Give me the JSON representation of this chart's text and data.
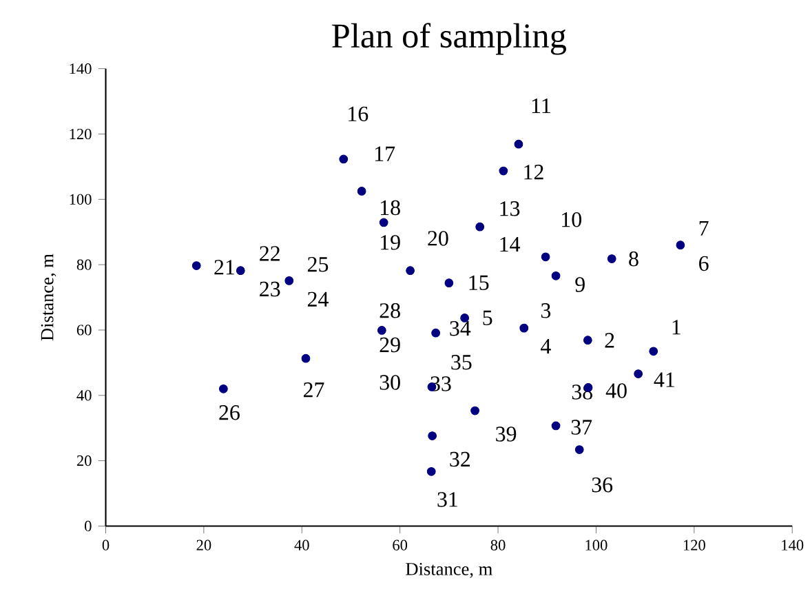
{
  "chart_data": {
    "type": "scatter",
    "title": "Plan of sampling",
    "xlabel": "Distance, m",
    "ylabel": "Distance, m",
    "x": [
      18.5,
      27.5,
      37.4,
      40.8,
      24.0,
      48.5,
      52.2,
      56.7,
      56.3,
      62.1,
      70.0,
      67.3,
      66.5,
      66.6,
      66.4,
      84.2,
      81.1,
      76.3,
      89.7,
      103.2,
      117.2,
      91.8,
      73.2,
      85.3,
      98.3,
      111.7,
      108.6,
      98.4,
      75.3,
      91.8,
      96.6
    ],
    "values": [
      79.7,
      78.2,
      75.1,
      51.3,
      42.0,
      112.3,
      102.5,
      92.9,
      59.9,
      78.2,
      74.4,
      59.1,
      42.6,
      27.6,
      16.7,
      116.9,
      108.7,
      91.6,
      82.4,
      81.8,
      86.0,
      76.6,
      63.7,
      60.6,
      56.9,
      53.5,
      46.6,
      42.4,
      35.3,
      30.7,
      23.4
    ],
    "color": "#000080",
    "marker": "circle",
    "xlim": [
      0,
      140
    ],
    "ylim": [
      0,
      140
    ],
    "xticks": [
      0,
      20,
      40,
      60,
      80,
      100,
      120,
      140
    ],
    "yticks": [
      0,
      20,
      40,
      60,
      80,
      100,
      120,
      140
    ],
    "annotations": [
      "1",
      "2",
      "3",
      "4",
      "5",
      "6",
      "7",
      "8",
      "9",
      "10",
      "11",
      "12",
      "13",
      "14",
      "15",
      "16",
      "17",
      "18",
      "19",
      "20",
      "21",
      "22",
      "23",
      "24",
      "25",
      "26",
      "27",
      "28",
      "29",
      "30",
      "31",
      "32",
      "33",
      "34",
      "35",
      "36",
      "37",
      "38",
      "39",
      "40",
      "41"
    ]
  }
}
